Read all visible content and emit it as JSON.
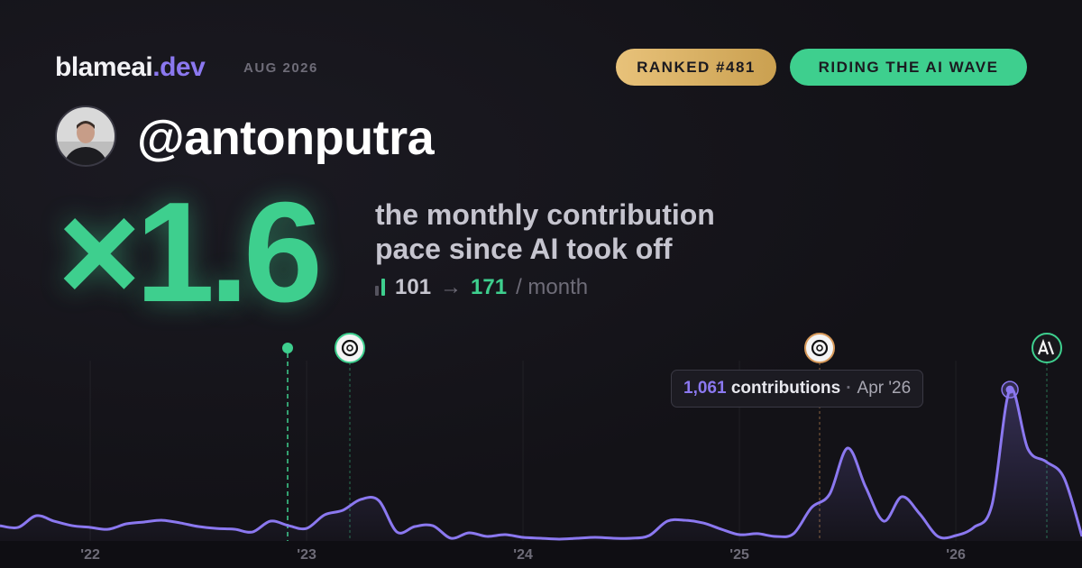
{
  "header": {
    "brand_name": "blameai",
    "brand_tld": ".dev",
    "period": "AUG 2026",
    "badges": [
      "RANKED #481",
      "RIDING THE AI WAVE"
    ]
  },
  "profile": {
    "username": "@antonputra"
  },
  "stats": {
    "multiplier": "×1.6",
    "description": [
      "the monthly contribution",
      "pace since AI took off"
    ],
    "before": "101",
    "arrow": "→",
    "after": "171",
    "unit": "/ month"
  },
  "chart_data": {
    "type": "line",
    "x": [
      2021.583,
      2021.667,
      2021.75,
      2021.833,
      2021.917,
      2022,
      2022.083,
      2022.167,
      2022.25,
      2022.333,
      2022.417,
      2022.5,
      2022.583,
      2022.667,
      2022.75,
      2022.833,
      2022.917,
      2023,
      2023.083,
      2023.167,
      2023.25,
      2023.333,
      2023.417,
      2023.5,
      2023.583,
      2023.667,
      2023.75,
      2023.833,
      2023.917,
      2024,
      2024.083,
      2024.167,
      2024.25,
      2024.333,
      2024.417,
      2024.5,
      2024.583,
      2024.667,
      2024.75,
      2024.833,
      2024.917,
      2025,
      2025.083,
      2025.167,
      2025.25,
      2025.333,
      2025.417,
      2025.5,
      2025.583,
      2025.667,
      2025.75,
      2025.833,
      2025.917,
      2026,
      2026.083,
      2026.167,
      2026.25,
      2026.333,
      2026.417,
      2026.5,
      2026.583
    ],
    "series": [
      {
        "name": "contributions",
        "color": "#8b78f0",
        "values": [
          107,
          95,
          177,
          139,
          107,
          95,
          82,
          120,
          133,
          145,
          126,
          101,
          88,
          82,
          63,
          139,
          107,
          88,
          183,
          215,
          291,
          284,
          63,
          101,
          107,
          19,
          57,
          32,
          44,
          25,
          19,
          13,
          19,
          25,
          19,
          19,
          38,
          139,
          145,
          126,
          82,
          44,
          51,
          32,
          51,
          234,
          329,
          651,
          379,
          139,
          310,
          190,
          32,
          38,
          95,
          253,
          1061,
          645,
          556,
          442,
          32
        ]
      }
    ],
    "xlim": [
      2021.583,
      2026.583
    ],
    "xticks": [
      {
        "value": 2022,
        "label": "'22"
      },
      {
        "value": 2023,
        "label": "'23"
      },
      {
        "value": 2024,
        "label": "'24"
      },
      {
        "value": 2025,
        "label": "'25"
      },
      {
        "value": 2026,
        "label": "'26"
      }
    ],
    "ylim": [
      0,
      1100
    ],
    "tooltip": {
      "value": 1061,
      "label": "1,061",
      "text": "contributions",
      "date": "Apr '26"
    }
  }
}
